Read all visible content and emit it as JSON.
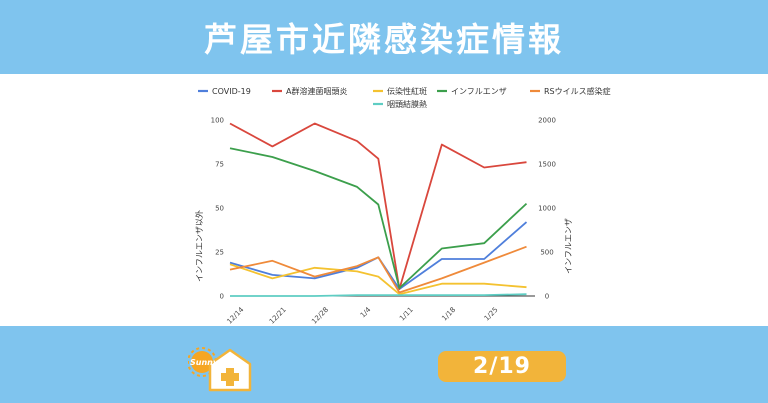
{
  "header": {
    "title": "芦屋市近隣感染症情報"
  },
  "footer": {
    "date": "2/19",
    "logo_text": "Sunny",
    "accent_color": "#f2b43a",
    "background_color": "#7fc4ee"
  },
  "chart_data": {
    "type": "line",
    "categories": [
      "12/14",
      "12/21",
      "12/28",
      "1/4",
      "1/11",
      "1/18",
      "1/25"
    ],
    "x_values": [
      0,
      1,
      2,
      3,
      3.5,
      4,
      5,
      6,
      7
    ],
    "ylabel_left": "インフルエンザ以外",
    "ylabel_right": "インフルエンザ",
    "ylim_left": [
      0,
      100
    ],
    "ylim_right": [
      0,
      2000
    ],
    "yticks_left": [
      "0",
      "25",
      "50",
      "75",
      "100"
    ],
    "yticks_right": [
      "0",
      "500",
      "1000",
      "1500",
      "2000"
    ],
    "legend_position": "top",
    "gridlines": false,
    "series": [
      {
        "name": "COVID-19",
        "color": "#4f7fdb",
        "axis": "left",
        "values": [
          19,
          12,
          10,
          16,
          22,
          4,
          21,
          21,
          42
        ]
      },
      {
        "name": "A群溶連菌咽頭炎",
        "color": "#d9473d",
        "axis": "left",
        "values": [
          98,
          85,
          98,
          88,
          78,
          4,
          86,
          73,
          76
        ]
      },
      {
        "name": "伝染性紅斑",
        "color": "#f4c230",
        "axis": "left",
        "values": [
          18,
          10,
          16,
          14,
          11,
          1,
          7,
          7,
          5
        ]
      },
      {
        "name": "インフルエンザ",
        "color": "#3c9f4c",
        "axis": "right",
        "values": [
          1680,
          1580,
          1420,
          1240,
          1040,
          90,
          540,
          600,
          1050
        ]
      },
      {
        "name": "RSウイルス感染症",
        "color": "#ef8a3a",
        "axis": "left",
        "values": [
          15,
          20,
          11,
          17,
          22,
          2,
          10,
          19,
          28
        ]
      },
      {
        "name": "咽頭結膜熱",
        "color": "#5ecdc3",
        "axis": "left",
        "values": [
          0,
          0,
          0,
          0.5,
          0.5,
          0.5,
          0.5,
          0.5,
          1
        ]
      }
    ]
  }
}
